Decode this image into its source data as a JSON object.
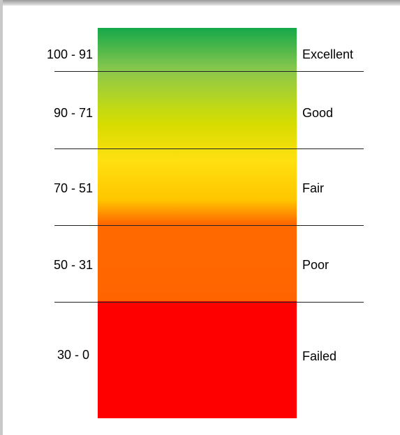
{
  "scale": {
    "bands": [
      {
        "range": "100 - 91",
        "rating": "Excellent"
      },
      {
        "range": "90 - 71",
        "rating": "Good"
      },
      {
        "range": "70 - 51",
        "rating": "Fair"
      },
      {
        "range": "50 - 31",
        "rating": "Poor"
      },
      {
        "range": "30 - 0",
        "rating": "Failed"
      }
    ]
  }
}
